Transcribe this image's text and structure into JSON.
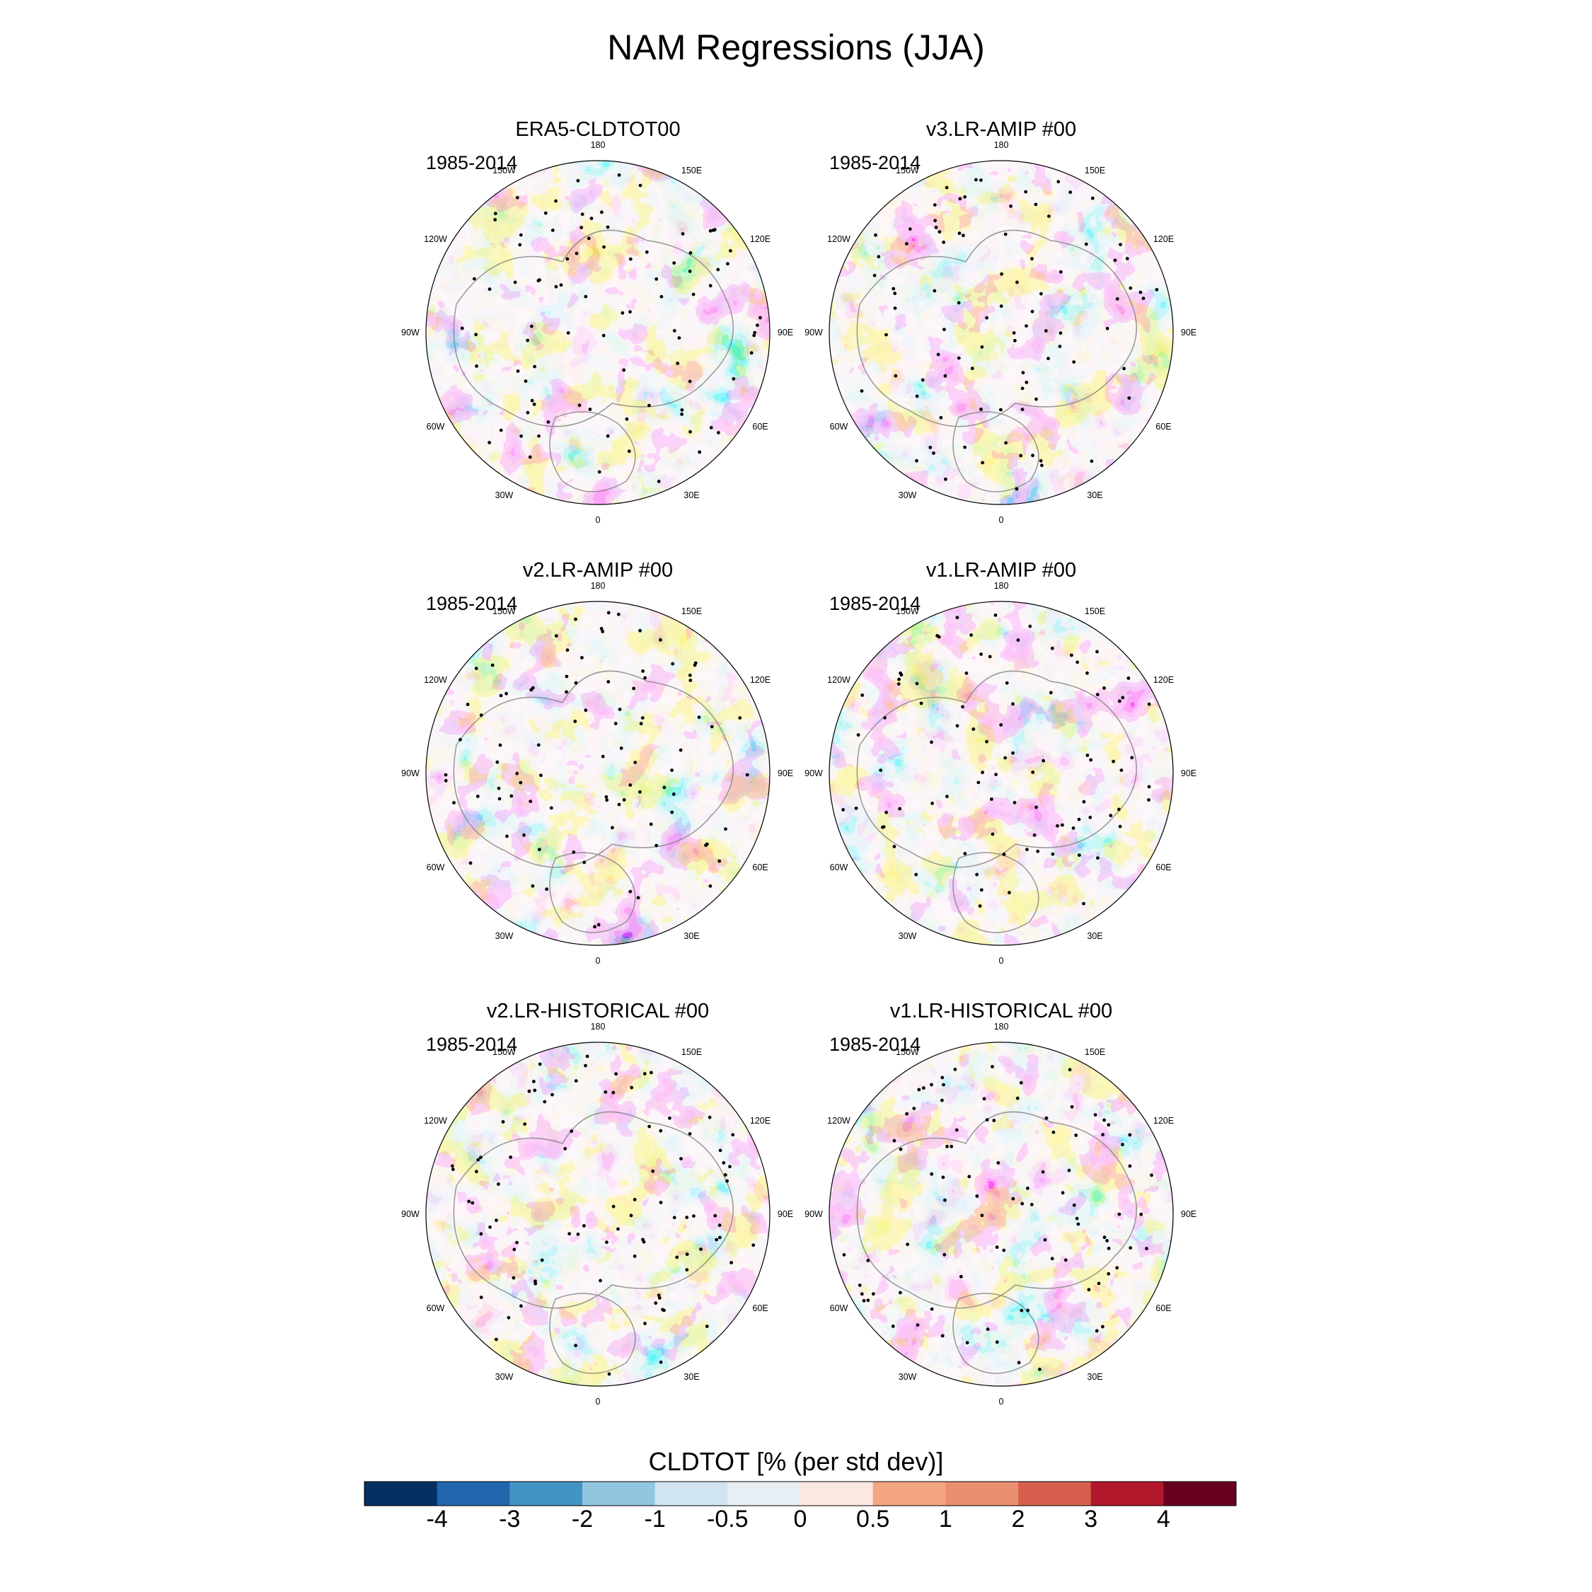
{
  "title": "NAM Regressions (JJA)",
  "colors": {
    "levels": [
      "#053061",
      "#2166ac",
      "#4393c3",
      "#92c5de",
      "#d1e5f0",
      "#e8eff4",
      "#fbe8e0",
      "#f4a582",
      "#eb8f72",
      "#d6604d",
      "#b2182b",
      "#67001f"
    ],
    "land_outline": "#7f7f7f",
    "stipple": "#000000"
  },
  "map": {
    "projection": "north polar stereographic",
    "longitude_labels": [
      "180",
      "150E",
      "120E",
      "90E",
      "60E",
      "30E",
      "0",
      "30W",
      "60W",
      "90W",
      "120W",
      "150W"
    ]
  },
  "panels": [
    {
      "title": "ERA5-CLDTOT00",
      "period": "1985-2014"
    },
    {
      "title": "v3.LR-AMIP  #00",
      "period": "1985-2014"
    },
    {
      "title": "v2.LR-AMIP  #00",
      "period": "1985-2014"
    },
    {
      "title": "v1.LR-AMIP  #00",
      "period": "1985-2014"
    },
    {
      "title": "v2.LR-HISTORICAL  #00",
      "period": "1985-2014"
    },
    {
      "title": "v1.LR-HISTORICAL  #00",
      "period": "1985-2014"
    }
  ],
  "colorbar": {
    "title": "CLDTOT [% (per std dev)]",
    "ticks": [
      "-4",
      "-3",
      "-2",
      "-1",
      "-0.5",
      "0",
      "0.5",
      "1",
      "2",
      "3",
      "4"
    ]
  }
}
